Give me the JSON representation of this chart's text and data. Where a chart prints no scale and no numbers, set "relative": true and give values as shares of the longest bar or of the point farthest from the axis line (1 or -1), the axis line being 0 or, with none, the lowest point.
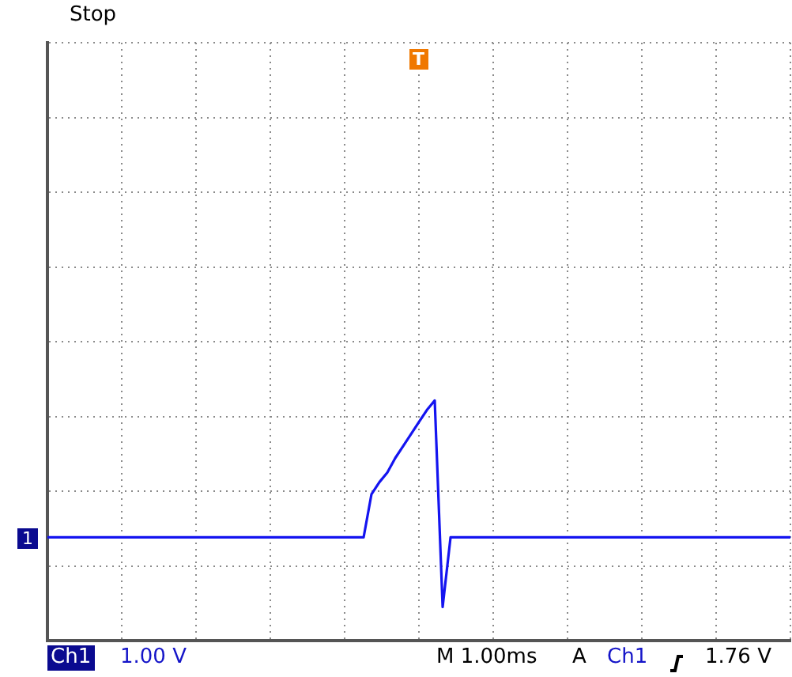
{
  "chart_data": {
    "type": "line",
    "relative": true,
    "grid": true,
    "tick_labels": false,
    "marker": "none",
    "color": "#1414f0",
    "categories": [
      null,
      null,
      null,
      null,
      null,
      null,
      null,
      null,
      null,
      null,
      null,
      null,
      null,
      null,
      null,
      null,
      null,
      null,
      null,
      null,
      null,
      null,
      null,
      null,
      null,
      null,
      null,
      null,
      null,
      null,
      null,
      null,
      null,
      null,
      null,
      null,
      null,
      null,
      null,
      null,
      null,
      null,
      null,
      null,
      null,
      null,
      null,
      null,
      null,
      null,
      null,
      null,
      null,
      null,
      null,
      null,
      null,
      null,
      null,
      null,
      null,
      null,
      null,
      null,
      null,
      null,
      null,
      null,
      null,
      null,
      null,
      null,
      null,
      null,
      null,
      null,
      null,
      null,
      null,
      null,
      null,
      null,
      null,
      null,
      null,
      null,
      null,
      null,
      null,
      null,
      null,
      null,
      null,
      null,
      null
    ],
    "values": [
      0.43,
      0.43,
      0.43,
      0.43,
      0.43,
      0.43,
      0.43,
      0.43,
      0.43,
      0.43,
      0.43,
      0.43,
      0.43,
      0.43,
      0.43,
      0.43,
      0.43,
      0.43,
      0.43,
      0.43,
      0.43,
      0.43,
      0.43,
      0.43,
      0.43,
      0.43,
      0.43,
      0.43,
      0.43,
      0.43,
      0.43,
      0.43,
      0.43,
      0.43,
      0.43,
      0.43,
      0.43,
      0.43,
      0.43,
      0.43,
      0.43,
      0.61,
      0.66,
      0.7,
      0.76,
      0.81,
      0.86,
      0.91,
      0.96,
      1,
      0.14,
      0.43,
      0.43,
      0.43,
      0.43,
      0.43,
      0.43,
      0.43,
      0.43,
      0.43,
      0.43,
      0.43,
      0.43,
      0.43,
      0.43,
      0.43,
      0.43,
      0.43,
      0.43,
      0.43,
      0.43,
      0.43,
      0.43,
      0.43,
      0.43,
      0.43,
      0.43,
      0.43,
      0.43,
      0.43,
      0.43,
      0.43,
      0.43,
      0.43,
      0.43,
      0.43,
      0.43,
      0.43,
      0.43,
      0.43,
      0.43,
      0.43,
      0.43,
      0.43,
      0.43
    ],
    "annotations": [
      "Stop",
      "Ch1",
      "1.00 V",
      "M 1.00ms",
      "A",
      "Ch1",
      "1.76 V",
      "1",
      "T"
    ]
  }
}
